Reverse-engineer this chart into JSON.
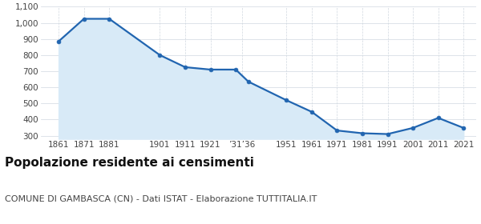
{
  "years": [
    1861,
    1871,
    1881,
    1901,
    1911,
    1921,
    1931,
    1936,
    1951,
    1961,
    1971,
    1981,
    1991,
    2001,
    2011,
    2021
  ],
  "population": [
    885,
    1025,
    1025,
    800,
    725,
    710,
    710,
    635,
    520,
    448,
    332,
    315,
    310,
    348,
    410,
    348
  ],
  "x_tick_positions": [
    1861,
    1871,
    1881,
    1901,
    1911,
    1921,
    1933.5,
    1951,
    1961,
    1971,
    1981,
    1991,
    2001,
    2011,
    2021
  ],
  "x_tick_labels": [
    "1861",
    "1871",
    "1881",
    "1901",
    "1911",
    "1921",
    "’31’36",
    "1951",
    "1961",
    "1971",
    "1981",
    "1991",
    "2001",
    "2011",
    "2021"
  ],
  "ylim_min": 280,
  "ylim_max": 1100,
  "yticks": [
    300,
    400,
    500,
    600,
    700,
    800,
    900,
    1000,
    1100
  ],
  "ytick_labels": [
    "300",
    "400",
    "500",
    "600",
    "700",
    "800",
    "900",
    "1,000",
    "1,100"
  ],
  "xlim_min": 1854,
  "xlim_max": 2026,
  "line_color": "#2165b0",
  "fill_color": "#d8eaf7",
  "marker_color": "#2165b0",
  "grid_color": "#d0d8e0",
  "bg_color": "#ffffff",
  "title": "Popolazione residente ai censimenti",
  "subtitle": "COMUNE DI GAMBASCA (CN) - Dati ISTAT - Elaborazione TUTTITALIA.IT",
  "title_fontsize": 11,
  "subtitle_fontsize": 8,
  "tick_fontsize": 7.5,
  "linewidth": 1.6,
  "markersize": 3.5
}
